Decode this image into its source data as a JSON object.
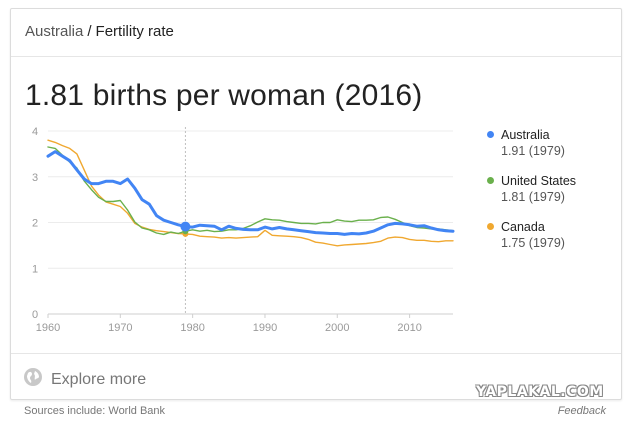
{
  "breadcrumb": {
    "country": "Australia",
    "separator": "/",
    "topic": "Fertility rate"
  },
  "headline": "1.81 births per woman (2016)",
  "legend": [
    {
      "name": "Australia",
      "value": "1.91 (1979)",
      "color": "#4285f4"
    },
    {
      "name": "United States",
      "value": "1.81 (1979)",
      "color": "#6ab04c"
    },
    {
      "name": "Canada",
      "value": "1.75 (1979)",
      "color": "#f0a830"
    }
  ],
  "explore": {
    "label": "Explore more",
    "icon": "globe-icon"
  },
  "footer": {
    "sources": "Sources include: World Bank",
    "feedback": "Feedback"
  },
  "watermark": "YAPLAKAL.COM",
  "chart_data": {
    "type": "line",
    "xlim": [
      1960,
      2016
    ],
    "ylim": [
      0,
      4
    ],
    "x_ticks": [
      1960,
      1970,
      1980,
      1990,
      2000,
      2010
    ],
    "y_ticks": [
      0,
      1,
      2,
      3,
      4
    ],
    "grid": true,
    "highlight_year": 1979,
    "legend_position": "right",
    "series": [
      {
        "name": "Australia",
        "color": "#4285f4",
        "x": [
          1960,
          1961,
          1962,
          1963,
          1964,
          1965,
          1966,
          1967,
          1968,
          1969,
          1970,
          1971,
          1972,
          1973,
          1974,
          1975,
          1976,
          1977,
          1978,
          1979,
          1980,
          1981,
          1982,
          1983,
          1984,
          1985,
          1986,
          1987,
          1988,
          1989,
          1990,
          1991,
          1992,
          1993,
          1994,
          1995,
          1996,
          1997,
          1998,
          1999,
          2000,
          2001,
          2002,
          2003,
          2004,
          2005,
          2006,
          2007,
          2008,
          2009,
          2010,
          2011,
          2012,
          2013,
          2014,
          2015,
          2016
        ],
        "y": [
          3.45,
          3.55,
          3.45,
          3.35,
          3.15,
          2.95,
          2.85,
          2.85,
          2.9,
          2.9,
          2.85,
          2.95,
          2.75,
          2.5,
          2.4,
          2.15,
          2.05,
          2.0,
          1.95,
          1.91,
          1.9,
          1.94,
          1.93,
          1.92,
          1.84,
          1.92,
          1.87,
          1.85,
          1.84,
          1.84,
          1.9,
          1.86,
          1.89,
          1.86,
          1.84,
          1.82,
          1.8,
          1.78,
          1.77,
          1.76,
          1.76,
          1.74,
          1.76,
          1.75,
          1.77,
          1.81,
          1.88,
          1.95,
          1.98,
          1.97,
          1.95,
          1.92,
          1.93,
          1.88,
          1.84,
          1.82,
          1.81
        ]
      },
      {
        "name": "United States",
        "color": "#6ab04c",
        "x": [
          1960,
          1961,
          1962,
          1963,
          1964,
          1965,
          1966,
          1967,
          1968,
          1969,
          1970,
          1971,
          1972,
          1973,
          1974,
          1975,
          1976,
          1977,
          1978,
          1979,
          1980,
          1981,
          1982,
          1983,
          1984,
          1985,
          1986,
          1987,
          1988,
          1989,
          1990,
          1991,
          1992,
          1993,
          1994,
          1995,
          1996,
          1997,
          1998,
          1999,
          2000,
          2001,
          2002,
          2003,
          2004,
          2005,
          2006,
          2007,
          2008,
          2009,
          2010,
          2011,
          2012,
          2013,
          2014,
          2015,
          2016
        ],
        "y": [
          3.65,
          3.62,
          3.47,
          3.32,
          3.19,
          2.91,
          2.72,
          2.55,
          2.46,
          2.46,
          2.48,
          2.27,
          2.01,
          1.88,
          1.84,
          1.77,
          1.74,
          1.79,
          1.76,
          1.81,
          1.84,
          1.81,
          1.83,
          1.8,
          1.81,
          1.84,
          1.84,
          1.87,
          1.93,
          2.01,
          2.08,
          2.06,
          2.05,
          2.02,
          2.0,
          1.98,
          1.98,
          1.97,
          2.0,
          2.0,
          2.06,
          2.03,
          2.02,
          2.05,
          2.05,
          2.06,
          2.11,
          2.12,
          2.07,
          2.0,
          1.93,
          1.89,
          1.88,
          1.86,
          1.86,
          1.84,
          1.82
        ]
      },
      {
        "name": "Canada",
        "color": "#f0a830",
        "x": [
          1960,
          1961,
          1962,
          1963,
          1964,
          1965,
          1966,
          1967,
          1968,
          1969,
          1970,
          1971,
          1972,
          1973,
          1974,
          1975,
          1976,
          1977,
          1978,
          1979,
          1980,
          1981,
          1982,
          1983,
          1984,
          1985,
          1986,
          1987,
          1988,
          1989,
          1990,
          1991,
          1992,
          1993,
          1994,
          1995,
          1996,
          1997,
          1998,
          1999,
          2000,
          2001,
          2002,
          2003,
          2004,
          2005,
          2006,
          2007,
          2008,
          2009,
          2010,
          2011,
          2012,
          2013,
          2014,
          2015,
          2016
        ],
        "y": [
          3.8,
          3.75,
          3.68,
          3.62,
          3.5,
          3.15,
          2.8,
          2.6,
          2.45,
          2.4,
          2.35,
          2.2,
          1.98,
          1.9,
          1.85,
          1.82,
          1.8,
          1.78,
          1.76,
          1.75,
          1.74,
          1.7,
          1.69,
          1.68,
          1.66,
          1.67,
          1.66,
          1.67,
          1.68,
          1.69,
          1.83,
          1.72,
          1.71,
          1.7,
          1.69,
          1.67,
          1.63,
          1.57,
          1.55,
          1.52,
          1.49,
          1.51,
          1.52,
          1.53,
          1.54,
          1.56,
          1.59,
          1.66,
          1.68,
          1.67,
          1.63,
          1.61,
          1.61,
          1.59,
          1.58,
          1.6,
          1.6
        ]
      }
    ]
  }
}
